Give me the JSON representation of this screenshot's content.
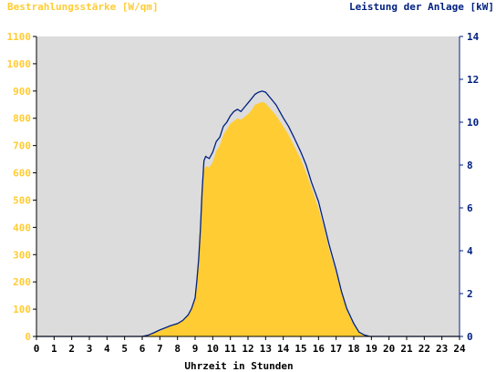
{
  "chart_data": {
    "type": "area",
    "left_axis": {
      "label": "Bestrahlungsstärke [W/qm]",
      "color": "#ffcc33",
      "ylim": [
        0,
        1100
      ],
      "ticks": [
        "0",
        "100",
        "200",
        "300",
        "400",
        "500",
        "600",
        "700",
        "800",
        "900",
        "1000",
        "1100"
      ]
    },
    "right_axis": {
      "label": "Leistung der Anlage [kW]",
      "color": "#002080",
      "ylim": [
        0,
        14
      ],
      "ticks": [
        "0",
        "2",
        "4",
        "6",
        "8",
        "10",
        "12",
        "14"
      ]
    },
    "x_axis": {
      "label": "Uhrzeit in Stunden",
      "xlim": [
        0,
        24
      ],
      "ticks": [
        "0",
        "1",
        "2",
        "3",
        "4",
        "5",
        "6",
        "7",
        "8",
        "9",
        "10",
        "11",
        "12",
        "13",
        "14",
        "15",
        "16",
        "17",
        "18",
        "19",
        "20",
        "21",
        "22",
        "23",
        "24"
      ]
    },
    "plot_background": "#dcdcdc",
    "grid": false,
    "series": [
      {
        "name": "Bestrahlungsstärke",
        "axis": "left",
        "style": "filled-area",
        "color": "#ffcc33",
        "x": [
          0,
          6.0,
          6.3,
          6.6,
          7.0,
          7.3,
          7.6,
          8.0,
          8.3,
          8.6,
          8.8,
          9.0,
          9.1,
          9.2,
          9.3,
          9.4,
          9.5,
          9.6,
          9.8,
          10.0,
          10.2,
          10.4,
          10.6,
          10.8,
          11.0,
          11.2,
          11.4,
          11.6,
          11.8,
          12.0,
          12.2,
          12.4,
          12.6,
          12.8,
          13.0,
          13.2,
          13.4,
          13.6,
          13.8,
          14.0,
          14.3,
          14.6,
          15.0,
          15.3,
          15.6,
          16.0,
          16.3,
          16.6,
          17.0,
          17.3,
          17.6,
          18.0,
          18.3,
          18.6,
          18.9,
          19.1,
          24
        ],
        "values": [
          0,
          0,
          5,
          12,
          20,
          28,
          38,
          48,
          60,
          80,
          100,
          140,
          200,
          280,
          390,
          530,
          610,
          625,
          620,
          640,
          680,
          700,
          740,
          760,
          780,
          790,
          800,
          795,
          805,
          815,
          830,
          850,
          855,
          860,
          855,
          840,
          825,
          810,
          790,
          770,
          740,
          700,
          650,
          600,
          545,
          470,
          400,
          320,
          230,
          160,
          95,
          40,
          15,
          5,
          0,
          0,
          0
        ]
      },
      {
        "name": "Leistung der Anlage",
        "axis": "right",
        "style": "line",
        "color": "#002080",
        "x": [
          0,
          6.0,
          6.3,
          6.6,
          7.0,
          7.3,
          7.6,
          8.0,
          8.3,
          8.6,
          8.8,
          9.0,
          9.1,
          9.2,
          9.3,
          9.4,
          9.5,
          9.6,
          9.8,
          10.0,
          10.2,
          10.4,
          10.6,
          10.8,
          11.0,
          11.2,
          11.4,
          11.6,
          11.8,
          12.0,
          12.2,
          12.4,
          12.6,
          12.8,
          13.0,
          13.2,
          13.4,
          13.6,
          13.8,
          14.0,
          14.3,
          14.6,
          15.0,
          15.3,
          15.6,
          16.0,
          16.3,
          16.6,
          17.0,
          17.3,
          17.6,
          18.0,
          18.3,
          18.6,
          18.9,
          19.1,
          24
        ],
        "values": [
          0,
          0,
          0.05,
          0.15,
          0.3,
          0.4,
          0.5,
          0.6,
          0.75,
          1.0,
          1.3,
          1.8,
          2.6,
          3.6,
          5.0,
          6.8,
          8.2,
          8.4,
          8.3,
          8.6,
          9.1,
          9.3,
          9.8,
          10.0,
          10.3,
          10.5,
          10.6,
          10.5,
          10.7,
          10.9,
          11.1,
          11.3,
          11.4,
          11.45,
          11.4,
          11.2,
          11.0,
          10.8,
          10.5,
          10.2,
          9.8,
          9.3,
          8.6,
          8.0,
          7.2,
          6.3,
          5.3,
          4.3,
          3.1,
          2.1,
          1.3,
          0.6,
          0.2,
          0.07,
          0,
          0,
          0
        ]
      }
    ]
  }
}
